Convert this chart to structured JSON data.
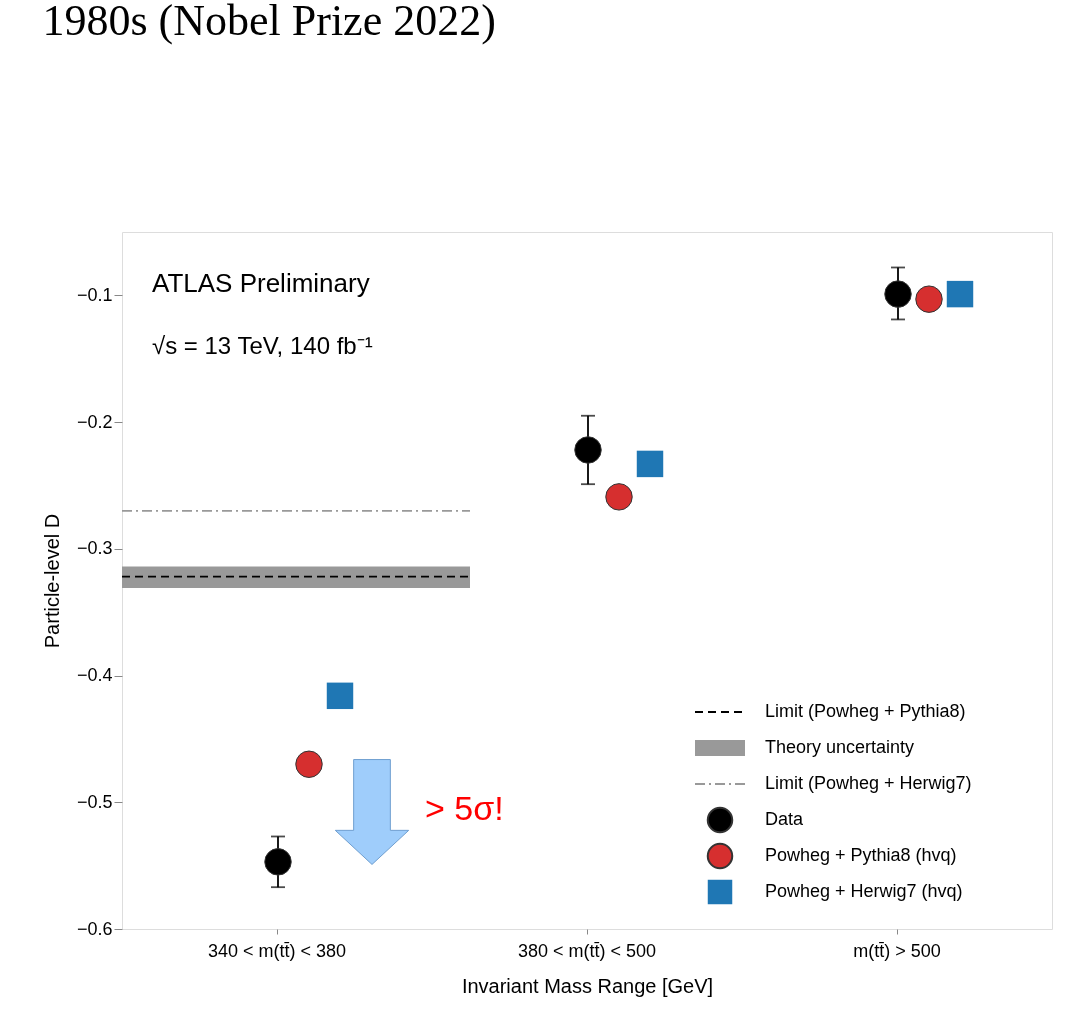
{
  "chart_data": {
    "type": "scatter",
    "title": "1980s (Nobel Prize 2022)",
    "xlabel": "Invariant Mass Range [GeV]",
    "ylabel": "Particle-level D",
    "categories": [
      "340 < m(tt̄) < 380",
      "380 < m(tt̄) < 500",
      "m(tt̄) > 500"
    ],
    "series": [
      {
        "name": "Data",
        "color": "#000000",
        "marker": "circle",
        "values": [
          -0.547,
          -0.222,
          -0.099
        ],
        "errors": [
          0.02,
          [
            -0.249,
            -0.195
          ],
          [
            -0.119,
            -0.078
          ]
        ]
      },
      {
        "name": "Powheg + Pythia8 (hvq)",
        "color": "#d62f2f",
        "marker": "circle",
        "values": [
          -0.47,
          -0.259,
          -0.103
        ]
      },
      {
        "name": "Powheg + Herwig7 (hvq)",
        "color": "#1f77b4",
        "marker": "square",
        "values": [
          -0.416,
          -0.233,
          -0.099
        ]
      }
    ],
    "ref_lines": [
      {
        "axis": "y",
        "value": -0.322,
        "label": "Limit (Powheg + Pythia8)",
        "color": "#000000",
        "line_style": "dashed"
      },
      {
        "axis": "y",
        "value": -0.27,
        "label": "Limit (Powheg + Herwig7)",
        "color": "#999999",
        "line_style": "dashdot"
      }
    ],
    "bands": [
      {
        "axis": "y",
        "from": -0.331,
        "to": -0.314,
        "label": "Theory uncertainty",
        "color": "#999999"
      }
    ],
    "annotations": [
      "ATLAS Preliminary",
      "√s = 13 TeV, 140 fb⁻¹",
      "> 5σ!"
    ],
    "ylim": [
      -0.6,
      -0.05
    ],
    "yticks": [
      -0.6,
      -0.5,
      -0.4,
      -0.3,
      -0.2,
      -0.1
    ],
    "grid": false,
    "legend": "bottom right"
  }
}
